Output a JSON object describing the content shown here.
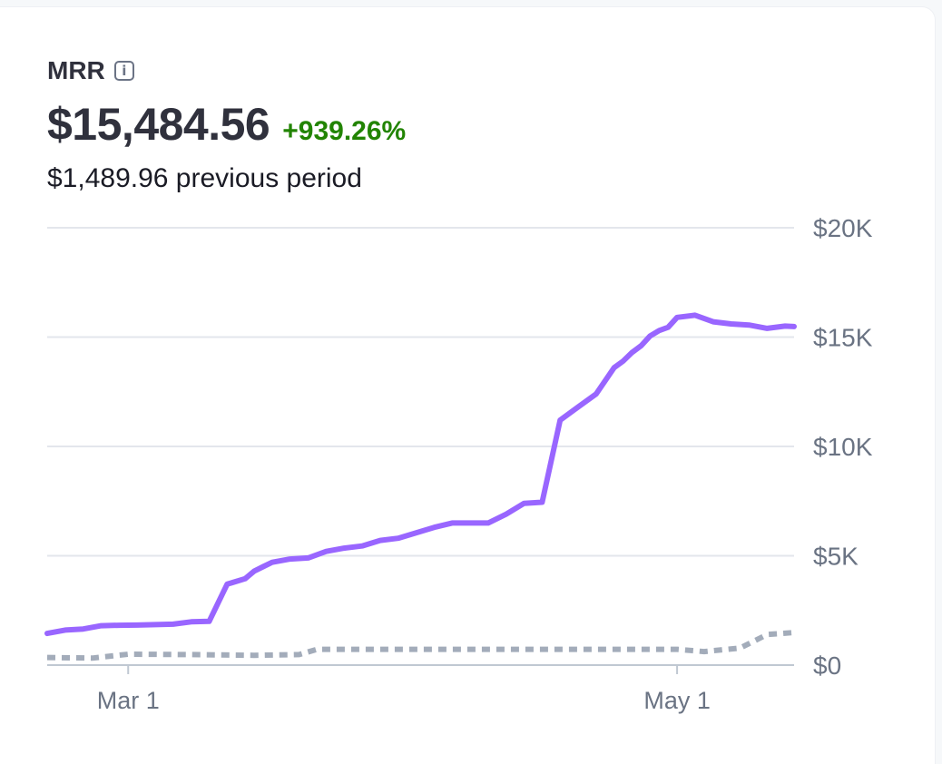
{
  "metric": {
    "label": "MRR",
    "info_icon": "info-icon",
    "value": "$15,484.56",
    "change": "+939.26%",
    "previous": "$1,489.96 previous period"
  },
  "colors": {
    "current": "#9966ff",
    "previous": "#a3acba",
    "grid": "#e3e6ec",
    "axis": "#c0c8d2",
    "tick_text": "#6a7383",
    "positive": "#228403"
  },
  "chart_data": {
    "type": "line",
    "title": "MRR",
    "xlabel": "",
    "ylabel": "",
    "x_ticks": [
      "Mar 1",
      "May 1"
    ],
    "y_ticks": [
      "$0",
      "$5K",
      "$10K",
      "$15K",
      "$20K"
    ],
    "ylim": [
      0,
      20000
    ],
    "x_range": [
      "Feb 20",
      "May 14"
    ],
    "grid": true,
    "legend": "none",
    "series": [
      {
        "style": "solid",
        "x": [
          "Feb 20",
          "Feb 22",
          "Feb 24",
          "Feb 26",
          "Feb 28",
          "Mar 2",
          "Mar 4",
          "Mar 6",
          "Mar 8",
          "Mar 10",
          "Mar 12",
          "Mar 14",
          "Mar 15",
          "Mar 16",
          "Mar 17",
          "Mar 19",
          "Mar 21",
          "Mar 23",
          "Mar 25",
          "Mar 27",
          "Mar 29",
          "Mar 31",
          "Apr 2",
          "Apr 4",
          "Apr 6",
          "Apr 8",
          "Apr 10",
          "Apr 12",
          "Apr 14",
          "Apr 16",
          "Apr 18",
          "Apr 20",
          "Apr 22",
          "Apr 23",
          "Apr 24",
          "Apr 25",
          "Apr 26",
          "Apr 27",
          "Apr 28",
          "Apr 29",
          "Apr 30",
          "May 1",
          "May 3",
          "May 5",
          "May 7",
          "May 9",
          "May 11",
          "May 13",
          "May 14"
        ],
        "values": [
          1450,
          1600,
          1650,
          1800,
          1820,
          1830,
          1850,
          1870,
          1980,
          2000,
          3700,
          3950,
          4300,
          4500,
          4700,
          4850,
          4900,
          5200,
          5350,
          5450,
          5700,
          5800,
          6050,
          6300,
          6500,
          6500,
          6500,
          6900,
          7400,
          7450,
          11200,
          11800,
          12400,
          13000,
          13600,
          13900,
          14300,
          14600,
          15050,
          15300,
          15450,
          15900,
          16000,
          15700,
          15600,
          15550,
          15400,
          15500,
          15480
        ]
      },
      {
        "style": "dashed",
        "x": [
          "Feb 20",
          "Feb 25",
          "Mar 1",
          "Mar 8",
          "Mar 15",
          "Mar 20",
          "Mar 22",
          "Apr 1",
          "Apr 15",
          "May 1",
          "May 4",
          "May 8",
          "May 11",
          "May 14"
        ],
        "values": [
          350,
          320,
          500,
          480,
          450,
          480,
          720,
          720,
          720,
          720,
          620,
          780,
          1400,
          1490
        ]
      }
    ]
  }
}
